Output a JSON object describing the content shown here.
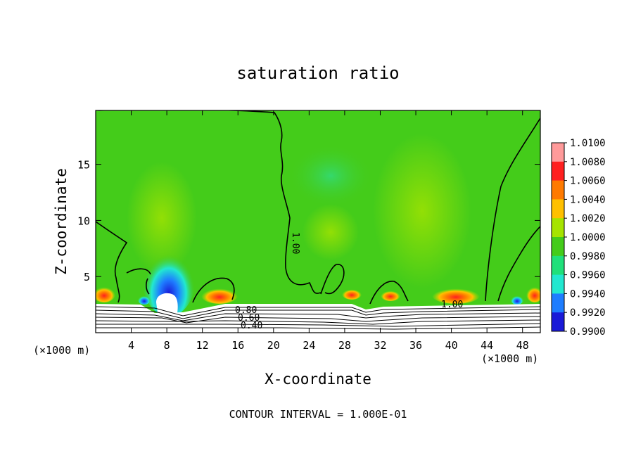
{
  "chart_data": {
    "type": "heatmap",
    "title": "saturation ratio",
    "xlabel": "X-coordinate",
    "ylabel": "Z-coordinate",
    "x_unit_left": "(×1000 m)",
    "x_unit_right": "(×1000 m)",
    "xlim": [
      0,
      50
    ],
    "ylim": [
      0,
      19.8
    ],
    "x_ticks": [
      4,
      8,
      12,
      16,
      20,
      24,
      28,
      32,
      36,
      40,
      44,
      48
    ],
    "y_ticks": [
      5,
      10,
      15
    ],
    "footer": "CONTOUR INTERVAL = 1.000E-01",
    "contour_labels": [
      "1.00",
      "1.00",
      "0.80",
      "0.60",
      "0.40"
    ],
    "colorbar": {
      "levels": [
        "1.0100",
        "1.0080",
        "1.0060",
        "1.0040",
        "1.0020",
        "1.0000",
        "0.9980",
        "0.9960",
        "0.9940",
        "0.9920",
        "0.9900"
      ],
      "colors": [
        "#ff9a9a",
        "#ff2020",
        "#ff7a00",
        "#ffc000",
        "#a6e400",
        "#44cc1a",
        "#20e07a",
        "#22e8d0",
        "#1e7dff",
        "#1a1ad8",
        "#8a2ad8"
      ]
    }
  }
}
